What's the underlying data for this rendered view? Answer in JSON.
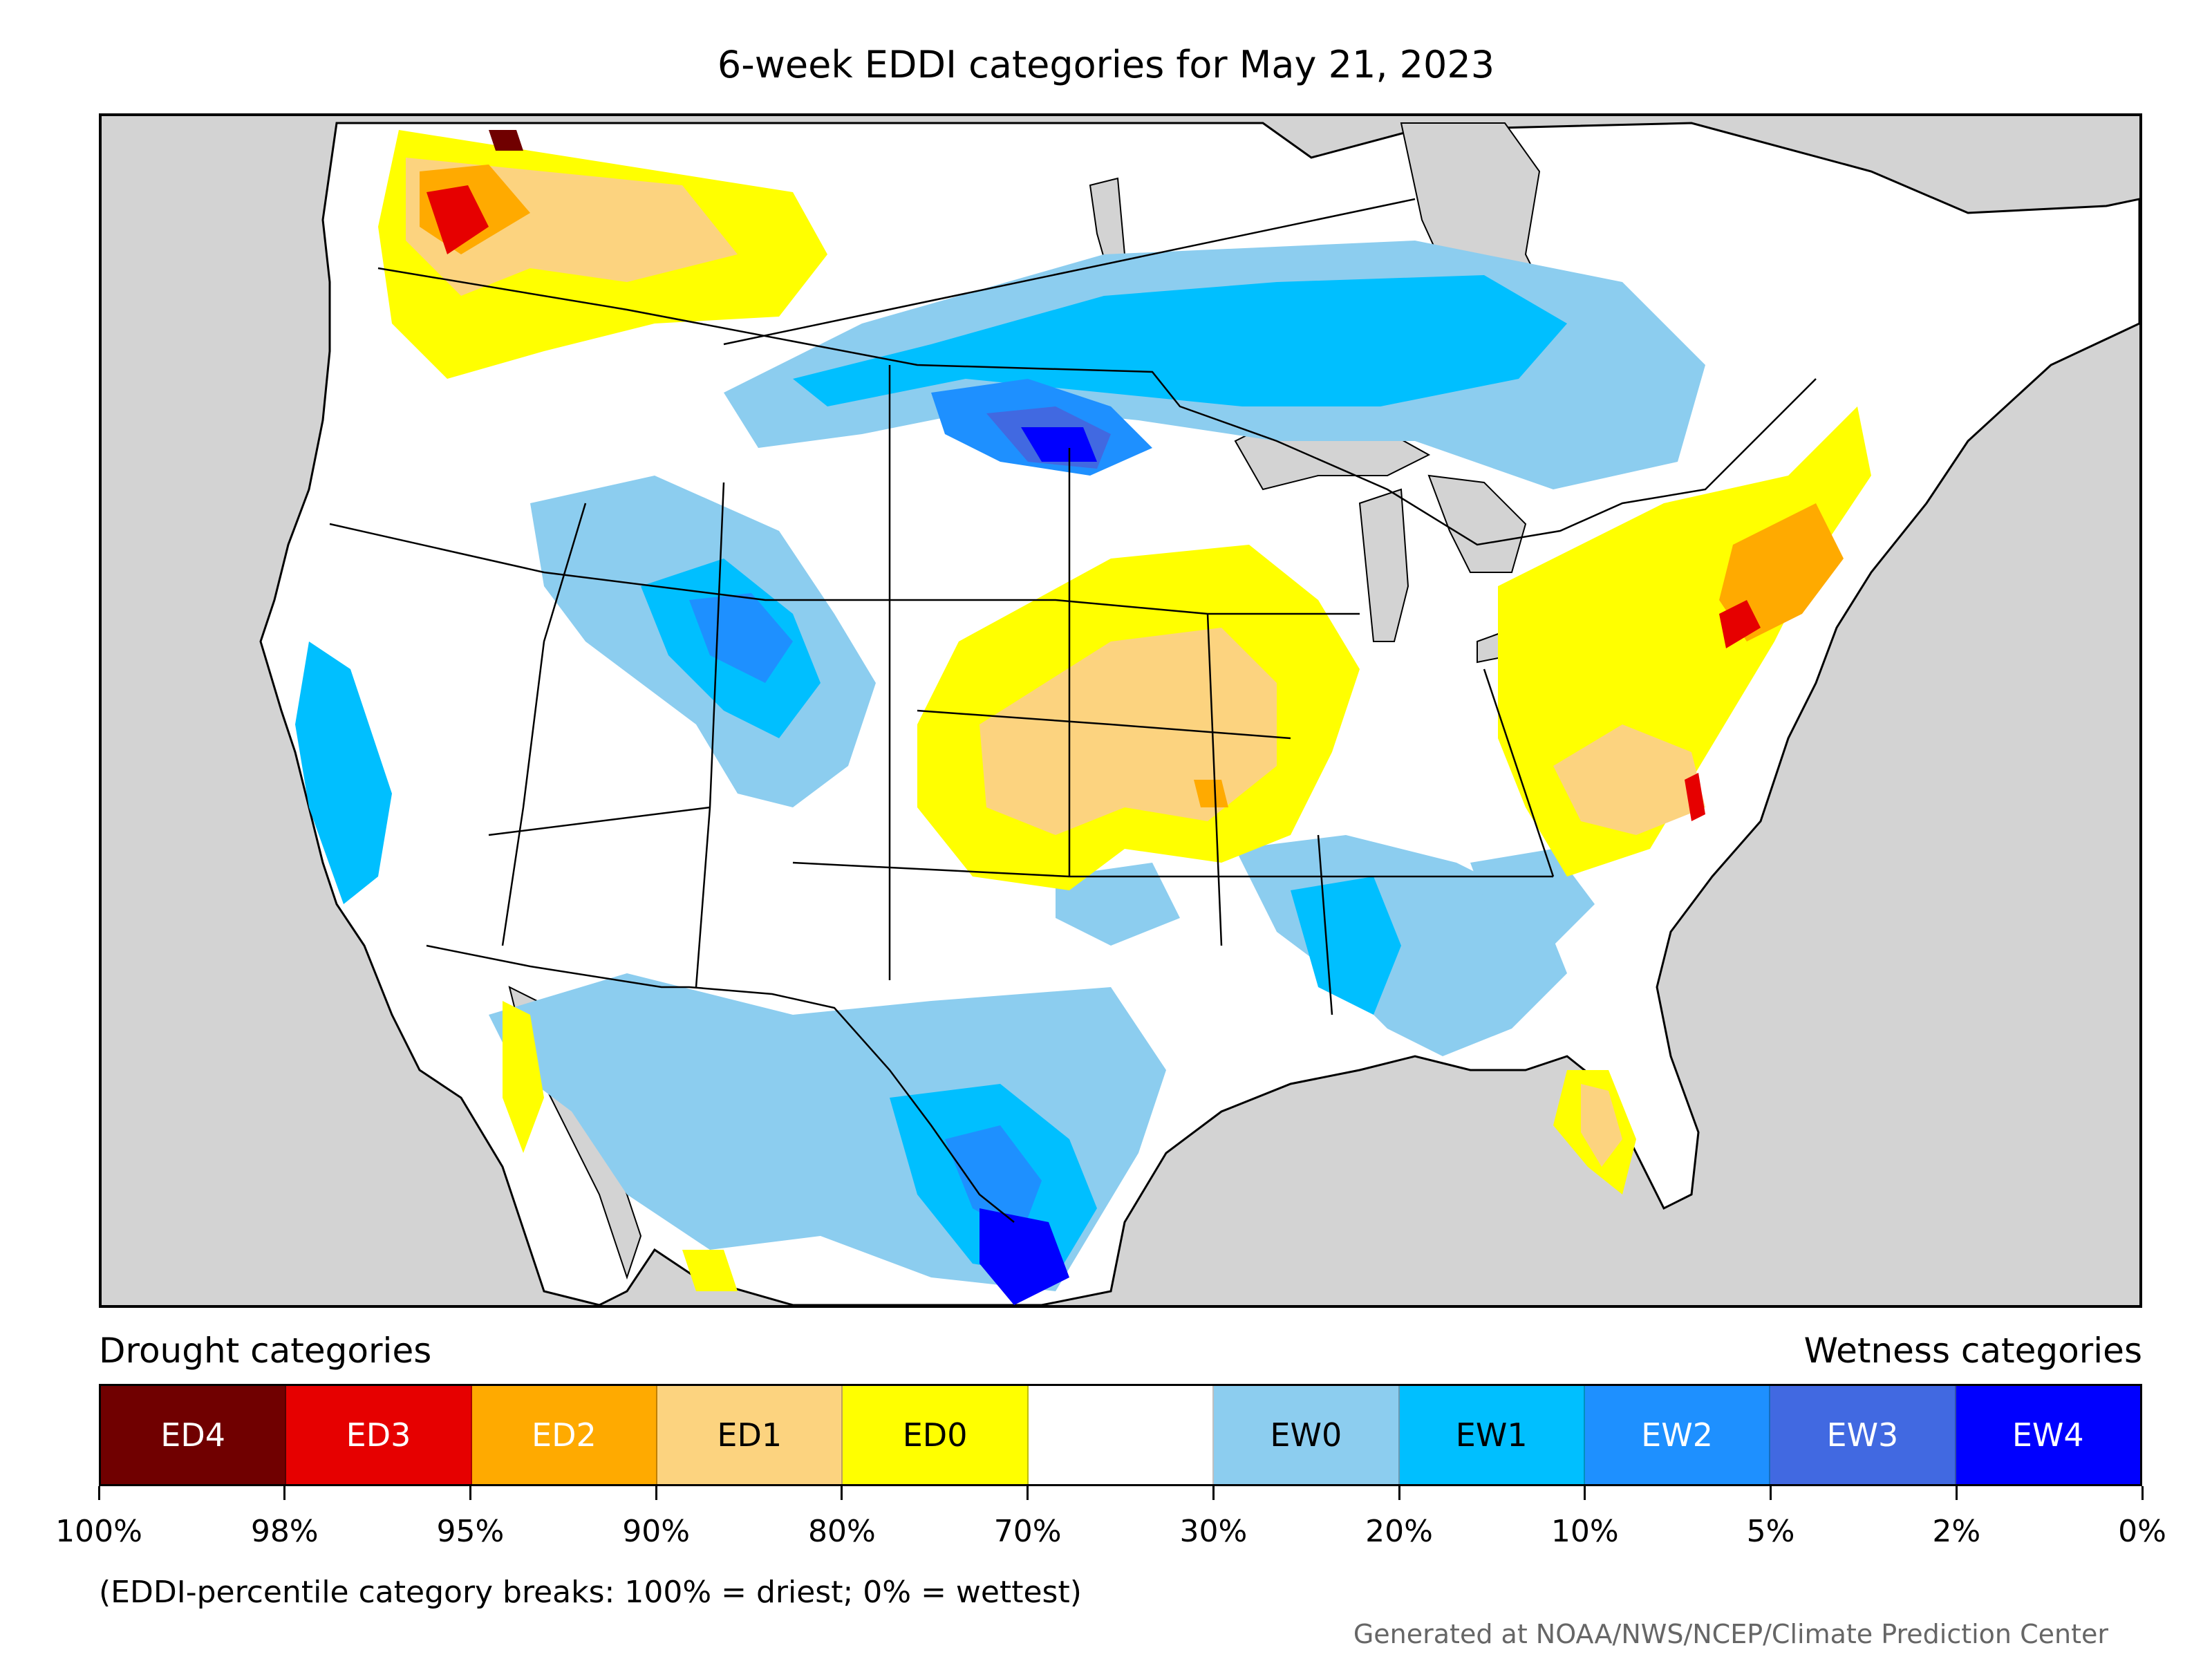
{
  "title": "6-week EDDI categories for May 21, 2023",
  "map": {
    "background_color": "#d3d3d3",
    "land_color": "#ffffff"
  },
  "legend": {
    "drought_heading": "Drought categories",
    "wetness_heading": "Wetness categories",
    "categories": [
      {
        "label": "ED4",
        "color": "#700000",
        "text_color": "#ffffff"
      },
      {
        "label": "ED3",
        "color": "#e60000",
        "text_color": "#ffffff"
      },
      {
        "label": "ED2",
        "color": "#ffaa00",
        "text_color": "#ffffff"
      },
      {
        "label": "ED1",
        "color": "#fcd37f",
        "text_color": "#000000"
      },
      {
        "label": "ED0",
        "color": "#ffff00",
        "text_color": "#000000"
      },
      {
        "label": "",
        "color": "#ffffff",
        "text_color": "#000000"
      },
      {
        "label": "EW0",
        "color": "#8ccdef",
        "text_color": "#000000"
      },
      {
        "label": "EW1",
        "color": "#00bfff",
        "text_color": "#000000"
      },
      {
        "label": "EW2",
        "color": "#1e90ff",
        "text_color": "#ffffff"
      },
      {
        "label": "EW3",
        "color": "#4169e1",
        "text_color": "#ffffff"
      },
      {
        "label": "EW4",
        "color": "#0000ff",
        "text_color": "#ffffff"
      }
    ],
    "ticks": [
      "100%",
      "98%",
      "95%",
      "90%",
      "80%",
      "70%",
      "30%",
      "20%",
      "10%",
      "5%",
      "2%",
      "0%"
    ]
  },
  "note": "(EDDI-percentile category breaks: 100% = driest; 0% = wettest)",
  "credit": "Generated at NOAA/NWS/NCEP/Climate Prediction Center"
}
